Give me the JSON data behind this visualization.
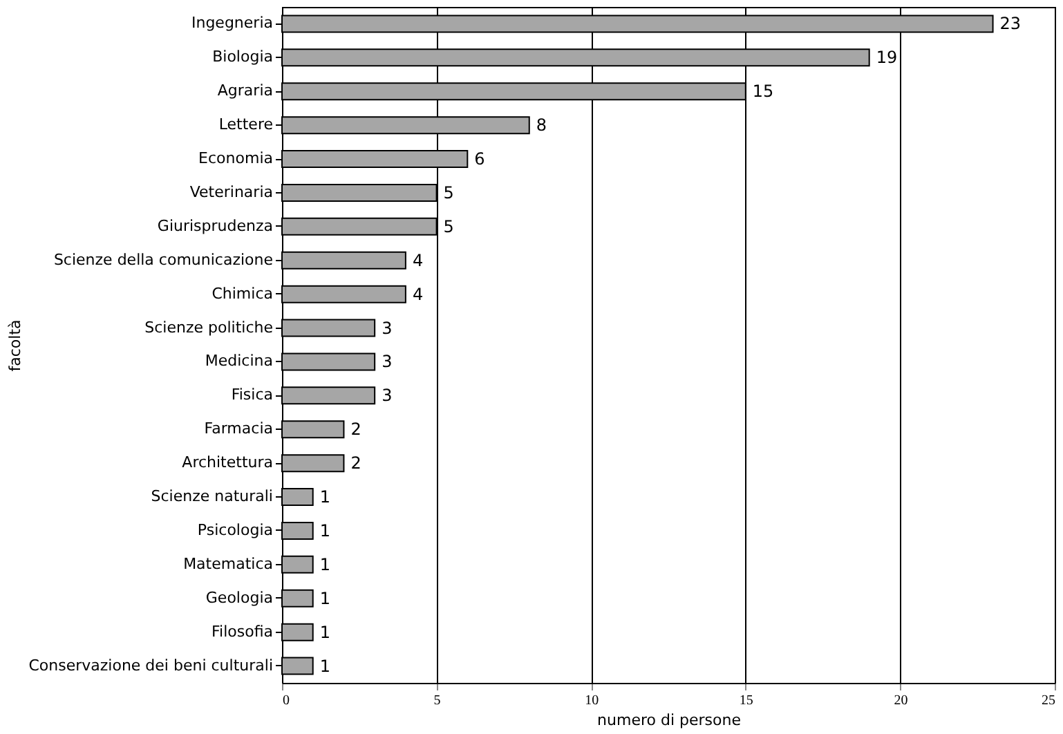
{
  "chart_data": {
    "type": "bar",
    "orientation": "horizontal",
    "xlabel": "numero di persone",
    "ylabel": "facoltà",
    "categories": [
      "Ingegneria",
      "Biologia",
      "Agraria",
      "Lettere",
      "Economia",
      "Veterinaria",
      "Giurisprudenza",
      "Scienze della comunicazione",
      "Chimica",
      "Scienze politiche",
      "Medicina",
      "Fisica",
      "Farmacia",
      "Architettura",
      "Scienze naturali",
      "Psicologia",
      "Matematica",
      "Geologia",
      "Filosofia",
      "Conservazione dei beni culturali"
    ],
    "values": [
      23,
      19,
      15,
      8,
      6,
      5,
      5,
      4,
      4,
      3,
      3,
      3,
      2,
      2,
      1,
      1,
      1,
      1,
      1,
      1
    ],
    "color": "#a6a6a6",
    "xlim": [
      0,
      25
    ],
    "xticks": [
      0,
      5,
      10,
      15,
      20,
      25
    ],
    "grid": "x",
    "data_labels": true
  }
}
